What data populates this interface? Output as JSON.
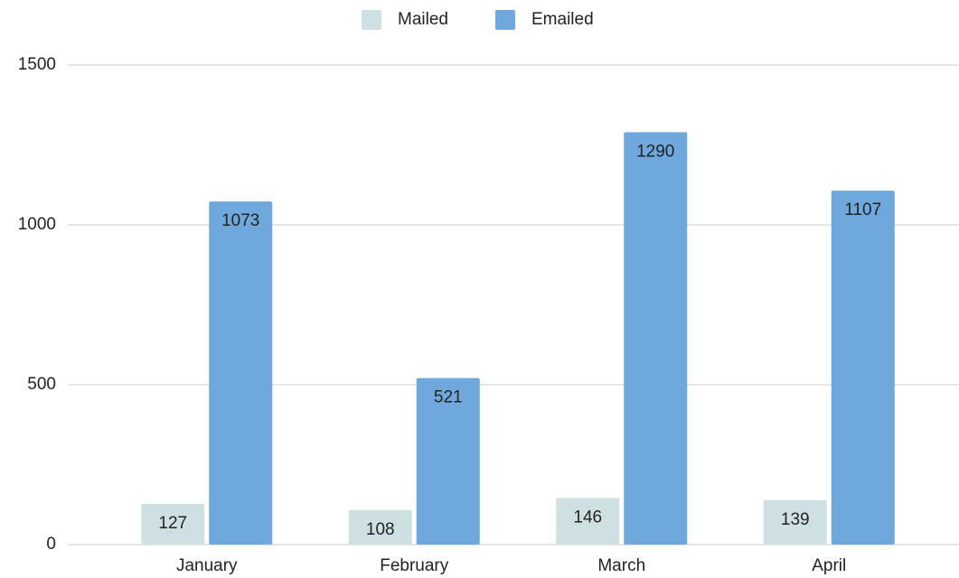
{
  "chart_data": {
    "type": "bar",
    "categories": [
      "January",
      "February",
      "March",
      "April"
    ],
    "series": [
      {
        "name": "Mailed",
        "color": "#cfe0e3",
        "values": [
          127,
          108,
          146,
          139
        ]
      },
      {
        "name": "Emailed",
        "color": "#6fa8dc",
        "values": [
          1073,
          521,
          1290,
          1107
        ]
      }
    ],
    "ylim": [
      0,
      1500
    ],
    "yticks": [
      0,
      500,
      1000,
      1500
    ],
    "grid": true,
    "legend": "top"
  }
}
